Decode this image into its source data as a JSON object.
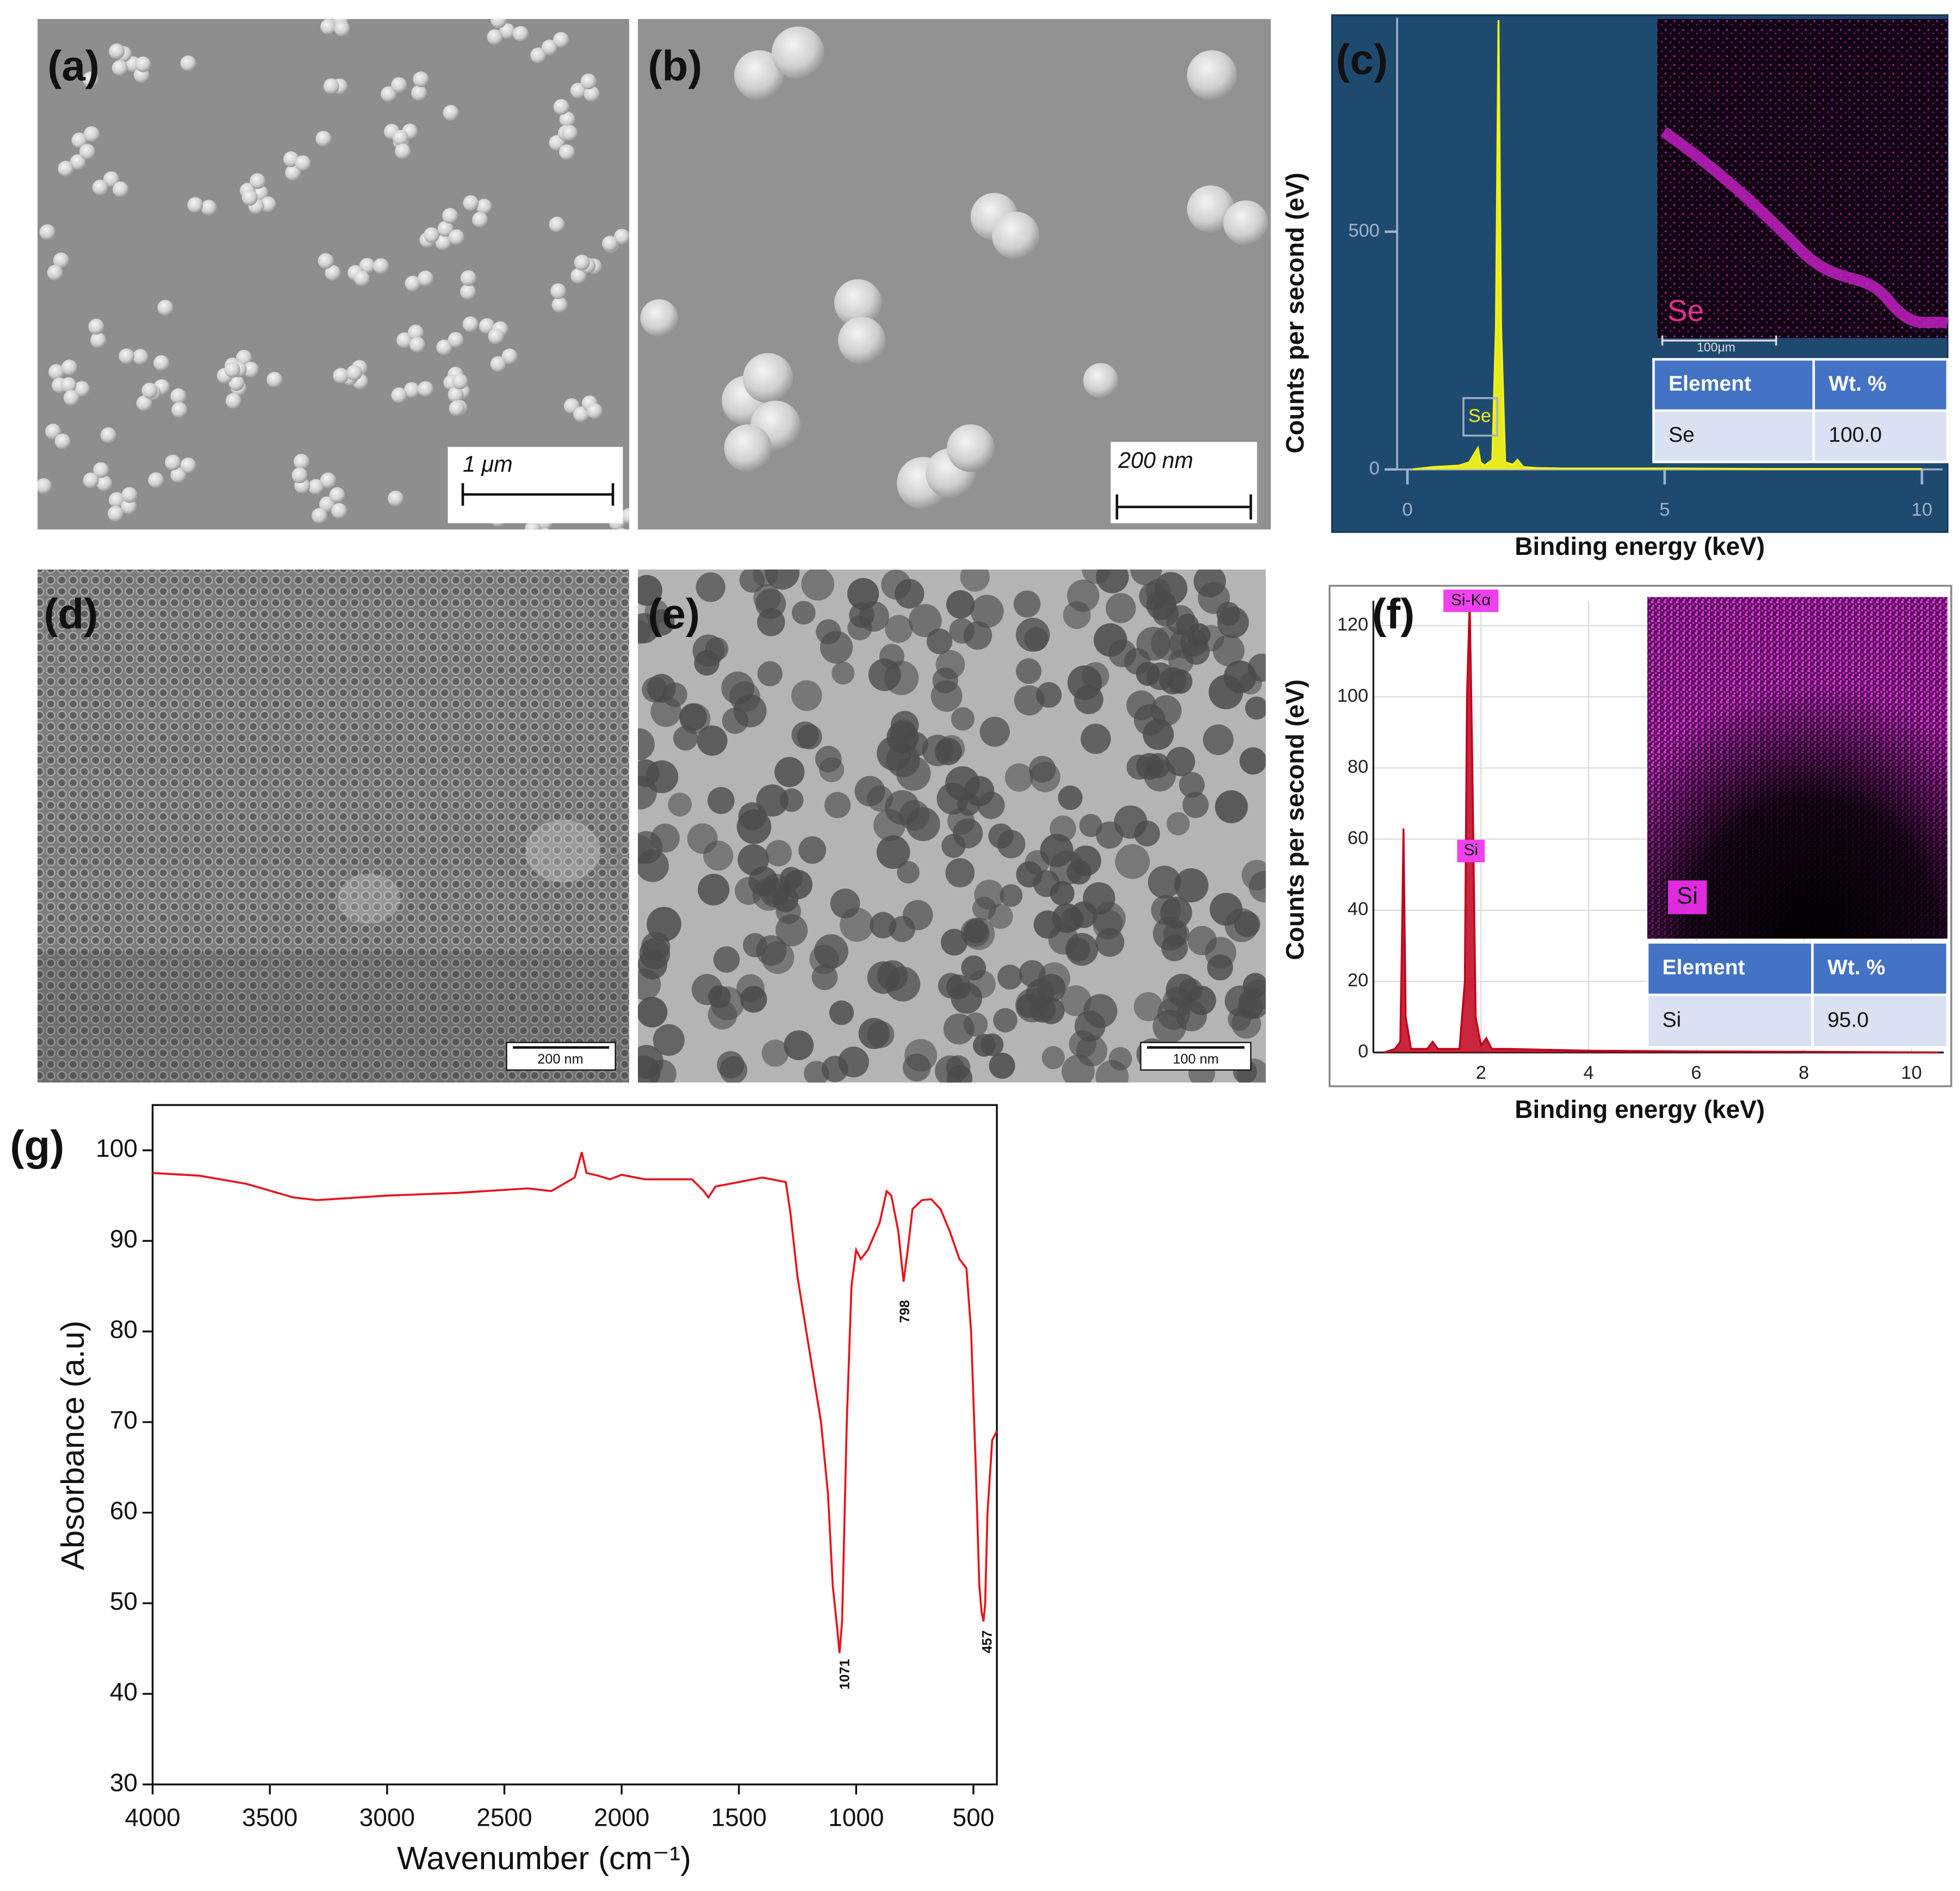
{
  "images": [
    {
      "label": "(a)",
      "scale_bar": "1 μm"
    },
    {
      "label": "(b)",
      "scale_bar": "200 nm"
    },
    {
      "label": "(d)",
      "scale_bar": "200 nm"
    },
    {
      "label": "(e)",
      "scale_bar": "100 nm"
    }
  ],
  "chart_data": [
    {
      "type": "area",
      "panel_label": "(c)",
      "x_label": "Binding energy (keV)",
      "y_label": "Counts per second (eV)",
      "x": [
        0.1,
        0.5,
        1.0,
        1.2,
        1.37,
        1.42,
        1.5,
        1.65,
        1.72,
        1.77,
        1.82,
        1.9,
        2.05,
        2.14,
        2.25,
        2.5,
        3,
        5,
        7,
        10
      ],
      "values": [
        0,
        5,
        8,
        15,
        45,
        15,
        8,
        20,
        300,
        945,
        300,
        15,
        10,
        20,
        5,
        3,
        2,
        2,
        1,
        1
      ],
      "color": "#f2f21a",
      "xlim": [
        -0.2,
        10.4
      ],
      "ylim": [
        0,
        950
      ],
      "xticks": [
        0,
        5,
        10
      ],
      "yticks": [
        0,
        500
      ],
      "annotations": [
        {
          "label": "Se"
        }
      ],
      "inset": {
        "label": "Se",
        "scale_bar": "100μm"
      },
      "table": {
        "header": [
          "Element",
          "Wt. %"
        ],
        "rows": [
          [
            "Se",
            "100.0"
          ]
        ]
      }
    },
    {
      "type": "area",
      "panel_label": "(f)",
      "x_label": "Binding energy (keV)",
      "y_label": "Counts per second (eV)",
      "x": [
        0.2,
        0.4,
        0.5,
        0.53,
        0.56,
        0.6,
        0.7,
        1.0,
        1.1,
        1.2,
        1.6,
        1.7,
        1.74,
        1.79,
        1.84,
        1.9,
        2.0,
        2.1,
        2.2,
        2.5,
        4,
        6,
        8,
        10.5
      ],
      "values": [
        0,
        1,
        3,
        30,
        63,
        10,
        1,
        1,
        3,
        1,
        1,
        20,
        100,
        127,
        80,
        10,
        2,
        4,
        1,
        1,
        0.5,
        0.3,
        0.2,
        0
      ],
      "color": "#c0001a",
      "xlim": [
        0,
        10.6
      ],
      "ylim": [
        0,
        127
      ],
      "xticks": [
        2,
        4,
        6,
        8,
        10
      ],
      "yticks": [
        0,
        20,
        40,
        60,
        80,
        100,
        120
      ],
      "grid": true,
      "annotations": [
        {
          "label": "Si-Kα"
        },
        {
          "label": "Si"
        }
      ],
      "inset": {
        "label": "Si"
      },
      "table": {
        "header": [
          "Element",
          "Wt. %"
        ],
        "rows": [
          [
            "Si",
            "95.0"
          ]
        ]
      }
    },
    {
      "type": "line",
      "panel_label": "(g)",
      "x_label": "Wavenumber (cm⁻¹)",
      "y_label": "Absorbance (a.u)",
      "x": [
        4000,
        3800,
        3600,
        3400,
        3300,
        3000,
        2700,
        2400,
        2300,
        2200,
        2170,
        2150,
        2100,
        2050,
        2000,
        1900,
        1700,
        1650,
        1630,
        1600,
        1500,
        1400,
        1300,
        1280,
        1250,
        1200,
        1150,
        1120,
        1100,
        1080,
        1071,
        1060,
        1040,
        1020,
        1000,
        980,
        950,
        900,
        870,
        850,
        820,
        798,
        780,
        760,
        720,
        680,
        640,
        600,
        560,
        530,
        510,
        490,
        475,
        465,
        457,
        450,
        440,
        420,
        400
      ],
      "values": [
        97.5,
        97.2,
        96.3,
        94.8,
        94.5,
        95,
        95.3,
        95.8,
        95.5,
        97,
        99.8,
        97.5,
        97.2,
        96.8,
        97.3,
        96.8,
        96.8,
        95.5,
        94.8,
        96,
        96.5,
        97,
        96.5,
        93,
        86,
        78,
        70,
        62,
        52,
        47,
        44.5,
        48,
        70,
        85,
        89,
        88,
        89,
        92,
        95.5,
        95,
        91,
        85.5,
        89,
        93.5,
        94.5,
        94.6,
        93.5,
        91,
        88,
        87,
        80,
        65,
        52,
        49,
        48,
        50,
        60,
        68,
        69
      ],
      "color": "#e8141b",
      "xlim": [
        4000,
        400
      ],
      "ylim": [
        30,
        105
      ],
      "xticks": [
        4000,
        3500,
        3000,
        2500,
        2000,
        1500,
        1000,
        500
      ],
      "yticks": [
        30,
        40,
        50,
        60,
        70,
        80,
        90,
        100
      ],
      "annotations": [
        {
          "label": "1071"
        },
        {
          "label": "798"
        },
        {
          "label": "457"
        }
      ]
    }
  ]
}
